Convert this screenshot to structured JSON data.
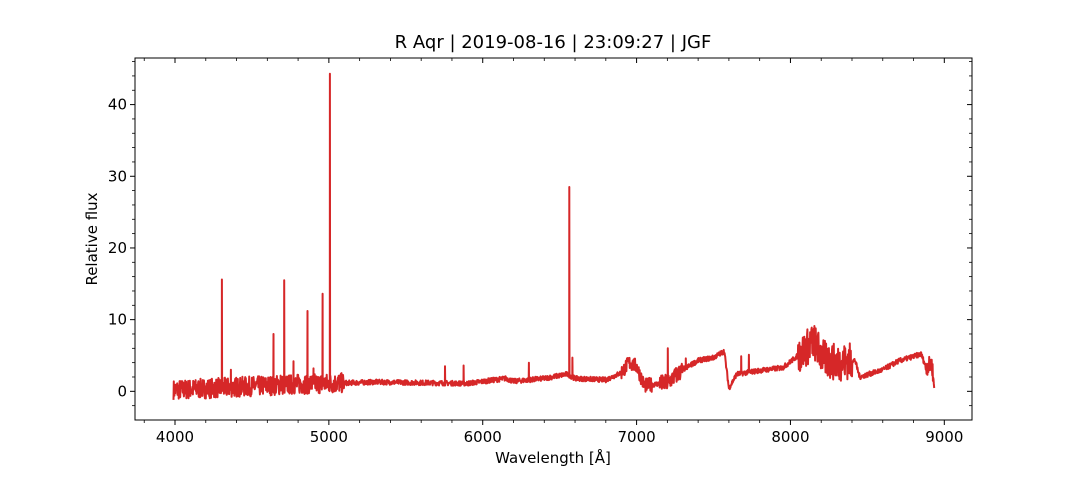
{
  "chart_data": {
    "type": "line",
    "title": "R Aqr | 2019-08-16 | 23:09:27 | JGF",
    "xlabel": "Wavelength [Å]",
    "ylabel": "Relative flux",
    "xlim": [
      3740,
      9180
    ],
    "ylim": [
      -4,
      46.5
    ],
    "x_ticks": [
      4000,
      5000,
      6000,
      7000,
      8000,
      9000
    ],
    "y_ticks": [
      0,
      10,
      20,
      30,
      40
    ],
    "x_tick_labels": [
      "4000",
      "5000",
      "6000",
      "7000",
      "8000",
      "9000"
    ],
    "y_tick_labels": [
      "0",
      "10",
      "20",
      "30",
      "40"
    ],
    "x_minor_step": 200,
    "y_minor_step": 2,
    "grid": false,
    "color": "#d62728",
    "series": [
      {
        "continuum": [
          [
            3990,
            0.2
          ],
          [
            4200,
            0.4
          ],
          [
            4500,
            0.7
          ],
          [
            4800,
            1.0
          ],
          [
            5000,
            1.1
          ],
          [
            5300,
            1.3
          ],
          [
            5600,
            1.2
          ],
          [
            5900,
            1.1
          ],
          [
            6150,
            1.8
          ],
          [
            6200,
            1.4
          ],
          [
            6400,
            1.8
          ],
          [
            6550,
            2.4
          ],
          [
            6600,
            1.8
          ],
          [
            6800,
            1.6
          ],
          [
            6900,
            2.6
          ],
          [
            6950,
            4.0
          ],
          [
            7000,
            3.5
          ],
          [
            7050,
            0.8
          ],
          [
            7200,
            1.2
          ],
          [
            7300,
            3.0
          ],
          [
            7400,
            4.3
          ],
          [
            7500,
            4.7
          ],
          [
            7570,
            5.6
          ],
          [
            7600,
            0.4
          ],
          [
            7650,
            2.4
          ],
          [
            7800,
            2.9
          ],
          [
            7950,
            3.3
          ],
          [
            8050,
            5.0
          ],
          [
            8150,
            7.0
          ],
          [
            8220,
            4.5
          ],
          [
            8300,
            4.0
          ],
          [
            8420,
            4.3
          ],
          [
            8450,
            2.0
          ],
          [
            8600,
            3.0
          ],
          [
            8700,
            4.2
          ],
          [
            8850,
            5.2
          ],
          [
            8880,
            3.4
          ],
          [
            8920,
            3.8
          ],
          [
            8935,
            0.2
          ]
        ],
        "emission_lines": [
          [
            4305,
            15.6
          ],
          [
            4363,
            3.0
          ],
          [
            4640,
            8.0
          ],
          [
            4686,
            2.2
          ],
          [
            4710,
            15.5
          ],
          [
            4770,
            4.2
          ],
          [
            4861,
            11.2
          ],
          [
            4900,
            3.2
          ],
          [
            4959,
            13.6
          ],
          [
            5007,
            44.3
          ],
          [
            5755,
            3.5
          ],
          [
            5876,
            3.6
          ],
          [
            6300,
            4.0
          ],
          [
            6563,
            28.5
          ],
          [
            6583,
            4.7
          ],
          [
            7203,
            6.0
          ],
          [
            7320,
            4.6
          ],
          [
            7680,
            4.9
          ],
          [
            7730,
            5.1
          ]
        ],
        "noise_regions": [
          [
            3990,
            5100,
            1.4
          ],
          [
            6900,
            7100,
            1.0
          ],
          [
            7150,
            7300,
            1.2
          ],
          [
            8050,
            8400,
            2.6
          ],
          [
            8880,
            8935,
            1.2
          ]
        ]
      }
    ]
  }
}
